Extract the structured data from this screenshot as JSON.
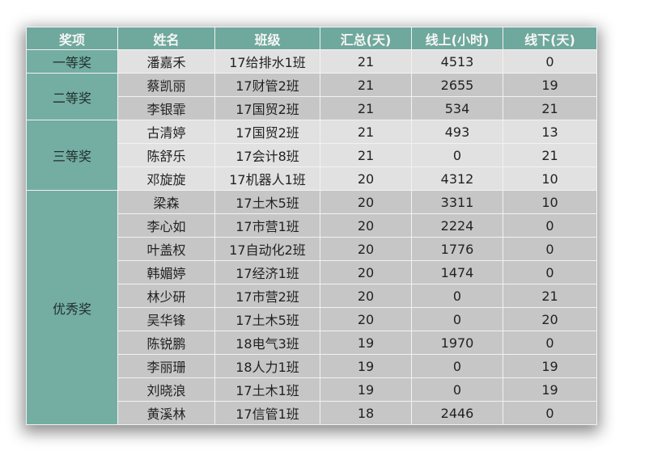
{
  "table": {
    "headers": [
      "奖项",
      "姓名",
      "班级",
      "汇总(天)",
      "线上(小时)",
      "线下(天)"
    ],
    "groups": [
      {
        "award": "一等奖",
        "shade": "light",
        "rows": [
          [
            "潘嘉禾",
            "17给排水1班",
            "21",
            "4513",
            "0"
          ]
        ]
      },
      {
        "award": "二等奖",
        "shade": "dark",
        "rows": [
          [
            "蔡凯丽",
            "17财管2班",
            "21",
            "2655",
            "19"
          ],
          [
            "李银霏",
            "17国贸2班",
            "21",
            "534",
            "21"
          ]
        ]
      },
      {
        "award": "三等奖",
        "shade": "light",
        "rows": [
          [
            "古清婷",
            "17国贸2班",
            "21",
            "493",
            "13"
          ],
          [
            "陈舒乐",
            "17会计8班",
            "21",
            "0",
            "21"
          ],
          [
            "邓旋旋",
            "17机器人1班",
            "20",
            "4312",
            "10"
          ]
        ]
      },
      {
        "award": "优秀奖",
        "shade": "dark",
        "rows": [
          [
            "梁森",
            "17土木5班",
            "20",
            "3311",
            "10"
          ],
          [
            "李心如",
            "17市营1班",
            "20",
            "2224",
            "0"
          ],
          [
            "叶盖权",
            "17自动化2班",
            "20",
            "1776",
            "0"
          ],
          [
            "韩媚婷",
            "17经济1班",
            "20",
            "1474",
            "0"
          ],
          [
            "林少研",
            "17市营2班",
            "20",
            "0",
            "21"
          ],
          [
            "吴华锋",
            "17土木5班",
            "20",
            "0",
            "20"
          ],
          [
            "陈锐鹏",
            "18电气3班",
            "19",
            "1970",
            "0"
          ],
          [
            "李丽珊",
            "18人力1班",
            "19",
            "0",
            "19"
          ],
          [
            "刘晓浪",
            "17土木1班",
            "19",
            "0",
            "19"
          ],
          [
            "黄溪林",
            "17信管1班",
            "18",
            "2446",
            "0"
          ]
        ]
      }
    ]
  },
  "colors": {
    "header": "#6fa89c",
    "award": "#74ada2",
    "row_light": "#e1e1e1",
    "row_dark": "#c6c6c6"
  }
}
